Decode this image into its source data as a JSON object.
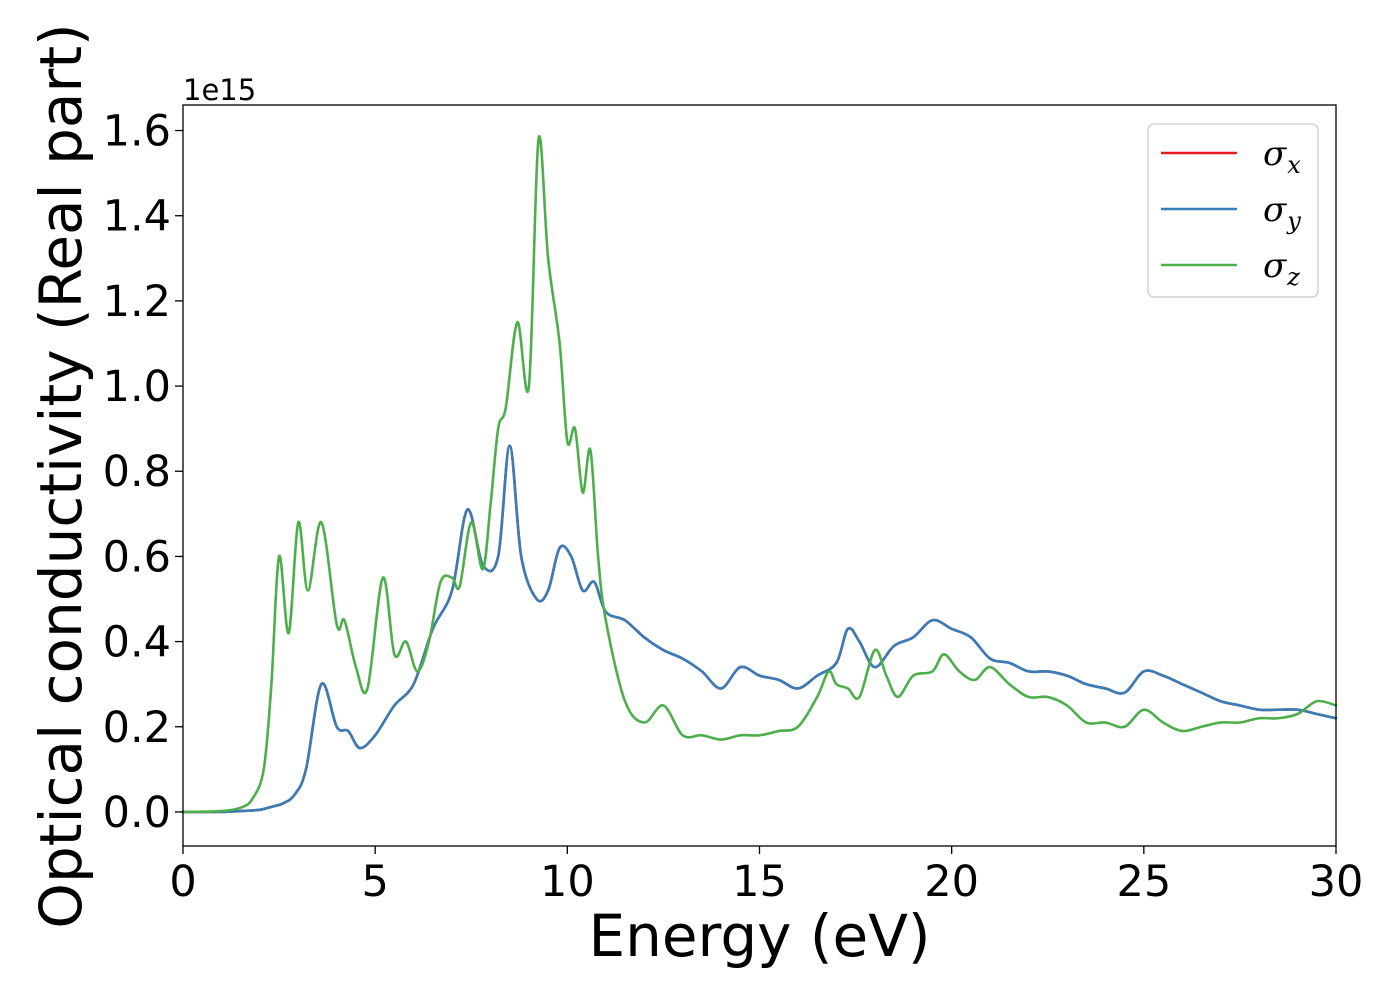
{
  "chart_data": {
    "type": "line",
    "title": "",
    "xlabel": "Energy (eV)",
    "ylabel": "Optical conductivity (Real part)",
    "y_offset_label": "1e15",
    "xlim": [
      0,
      30
    ],
    "ylim": [
      -0.08,
      1.66
    ],
    "x_ticks": [
      0,
      5,
      10,
      15,
      20,
      25,
      30
    ],
    "x_tick_labels": [
      "0",
      "5",
      "10",
      "15",
      "20",
      "25",
      "30"
    ],
    "y_ticks": [
      0.0,
      0.2,
      0.4,
      0.6,
      0.8,
      1.0,
      1.2,
      1.4,
      1.6
    ],
    "y_tick_labels": [
      "0.0",
      "0.2",
      "0.4",
      "0.6",
      "0.8",
      "1.0",
      "1.2",
      "1.4",
      "1.6"
    ],
    "grid": false,
    "legend_position": "top-right",
    "legend": [
      {
        "symbol": "σ",
        "subscript": "x",
        "color": "#e41a1c"
      },
      {
        "symbol": "σ",
        "subscript": "y",
        "color": "#377eb8"
      },
      {
        "symbol": "σ",
        "subscript": "z",
        "color": "#4daf4a"
      }
    ],
    "series": [
      {
        "color": "#e41a1c",
        "x": [
          0,
          1,
          1.5,
          2.0,
          2.3,
          2.6,
          2.9,
          3.2,
          3.6,
          4.0,
          4.3,
          4.6,
          5.0,
          5.5,
          6.0,
          6.5,
          7.0,
          7.4,
          7.8,
          8.2,
          8.5,
          8.8,
          9.2,
          9.5,
          9.8,
          10.1,
          10.4,
          10.7,
          11.0,
          11.5,
          12.0,
          12.5,
          13.0,
          13.5,
          14.0,
          14.5,
          15.0,
          15.5,
          16.0,
          16.5,
          17.0,
          17.3,
          17.6,
          18.0,
          18.5,
          19.0,
          19.5,
          20.0,
          20.5,
          21.0,
          21.5,
          22.0,
          22.5,
          23.0,
          23.5,
          24.0,
          24.5,
          25.0,
          25.5,
          26.0,
          26.5,
          27.0,
          27.5,
          28.0,
          28.5,
          29.0,
          29.5,
          30.0
        ],
        "y": [
          0.0,
          0.0,
          0.002,
          0.005,
          0.012,
          0.02,
          0.04,
          0.1,
          0.3,
          0.2,
          0.19,
          0.15,
          0.18,
          0.25,
          0.3,
          0.43,
          0.52,
          0.71,
          0.58,
          0.6,
          0.86,
          0.6,
          0.5,
          0.52,
          0.62,
          0.6,
          0.52,
          0.54,
          0.47,
          0.45,
          0.41,
          0.38,
          0.36,
          0.33,
          0.29,
          0.34,
          0.32,
          0.31,
          0.29,
          0.32,
          0.35,
          0.43,
          0.4,
          0.34,
          0.39,
          0.41,
          0.45,
          0.43,
          0.41,
          0.36,
          0.35,
          0.33,
          0.33,
          0.32,
          0.3,
          0.29,
          0.28,
          0.33,
          0.32,
          0.3,
          0.28,
          0.26,
          0.25,
          0.24,
          0.24,
          0.24,
          0.23,
          0.22
        ]
      },
      {
        "color": "#377eb8",
        "x": [
          0,
          1,
          1.5,
          2.0,
          2.3,
          2.6,
          2.9,
          3.2,
          3.6,
          4.0,
          4.3,
          4.6,
          5.0,
          5.5,
          6.0,
          6.5,
          7.0,
          7.4,
          7.8,
          8.2,
          8.5,
          8.8,
          9.2,
          9.5,
          9.8,
          10.1,
          10.4,
          10.7,
          11.0,
          11.5,
          12.0,
          12.5,
          13.0,
          13.5,
          14.0,
          14.5,
          15.0,
          15.5,
          16.0,
          16.5,
          17.0,
          17.3,
          17.6,
          18.0,
          18.5,
          19.0,
          19.5,
          20.0,
          20.5,
          21.0,
          21.5,
          22.0,
          22.5,
          23.0,
          23.5,
          24.0,
          24.5,
          25.0,
          25.5,
          26.0,
          26.5,
          27.0,
          27.5,
          28.0,
          28.5,
          29.0,
          29.5,
          30.0
        ],
        "y": [
          0.0,
          0.0,
          0.002,
          0.005,
          0.012,
          0.02,
          0.04,
          0.1,
          0.3,
          0.2,
          0.19,
          0.15,
          0.18,
          0.25,
          0.3,
          0.43,
          0.52,
          0.71,
          0.58,
          0.6,
          0.86,
          0.6,
          0.5,
          0.52,
          0.62,
          0.6,
          0.52,
          0.54,
          0.47,
          0.45,
          0.41,
          0.38,
          0.36,
          0.33,
          0.29,
          0.34,
          0.32,
          0.31,
          0.29,
          0.32,
          0.35,
          0.43,
          0.4,
          0.34,
          0.39,
          0.41,
          0.45,
          0.43,
          0.41,
          0.36,
          0.35,
          0.33,
          0.33,
          0.32,
          0.3,
          0.29,
          0.28,
          0.33,
          0.32,
          0.3,
          0.28,
          0.26,
          0.25,
          0.24,
          0.24,
          0.24,
          0.23,
          0.22
        ]
      },
      {
        "color": "#4daf4a",
        "x": [
          0,
          1,
          1.5,
          1.8,
          2.1,
          2.3,
          2.5,
          2.75,
          3.0,
          3.25,
          3.6,
          4.0,
          4.2,
          4.5,
          4.8,
          5.2,
          5.5,
          5.8,
          6.1,
          6.4,
          6.7,
          7.0,
          7.2,
          7.5,
          7.8,
          8.0,
          8.2,
          8.4,
          8.7,
          9.0,
          9.25,
          9.5,
          9.8,
          10.0,
          10.2,
          10.4,
          10.6,
          10.8,
          11.0,
          11.5,
          12.0,
          12.5,
          13.0,
          13.5,
          14.0,
          14.5,
          15.0,
          15.5,
          16.0,
          16.5,
          16.8,
          17.0,
          17.3,
          17.6,
          18.0,
          18.3,
          18.6,
          19.0,
          19.5,
          19.8,
          20.2,
          20.6,
          21.0,
          21.5,
          22.0,
          22.5,
          23.0,
          23.5,
          24.0,
          24.5,
          25.0,
          25.5,
          26.0,
          26.5,
          27.0,
          27.5,
          28.0,
          28.5,
          29.0,
          29.5,
          30.0
        ],
        "y": [
          0.0,
          0.002,
          0.01,
          0.03,
          0.1,
          0.3,
          0.6,
          0.42,
          0.68,
          0.52,
          0.68,
          0.44,
          0.45,
          0.34,
          0.29,
          0.55,
          0.37,
          0.4,
          0.33,
          0.4,
          0.54,
          0.55,
          0.53,
          0.68,
          0.57,
          0.72,
          0.9,
          0.95,
          1.15,
          1.0,
          1.58,
          1.3,
          1.1,
          0.87,
          0.9,
          0.75,
          0.85,
          0.6,
          0.45,
          0.26,
          0.21,
          0.25,
          0.18,
          0.18,
          0.17,
          0.18,
          0.18,
          0.19,
          0.2,
          0.27,
          0.33,
          0.3,
          0.29,
          0.27,
          0.38,
          0.32,
          0.27,
          0.32,
          0.33,
          0.37,
          0.33,
          0.31,
          0.34,
          0.3,
          0.27,
          0.27,
          0.25,
          0.21,
          0.21,
          0.2,
          0.24,
          0.21,
          0.19,
          0.2,
          0.21,
          0.21,
          0.22,
          0.22,
          0.23,
          0.26,
          0.25
        ]
      }
    ]
  }
}
